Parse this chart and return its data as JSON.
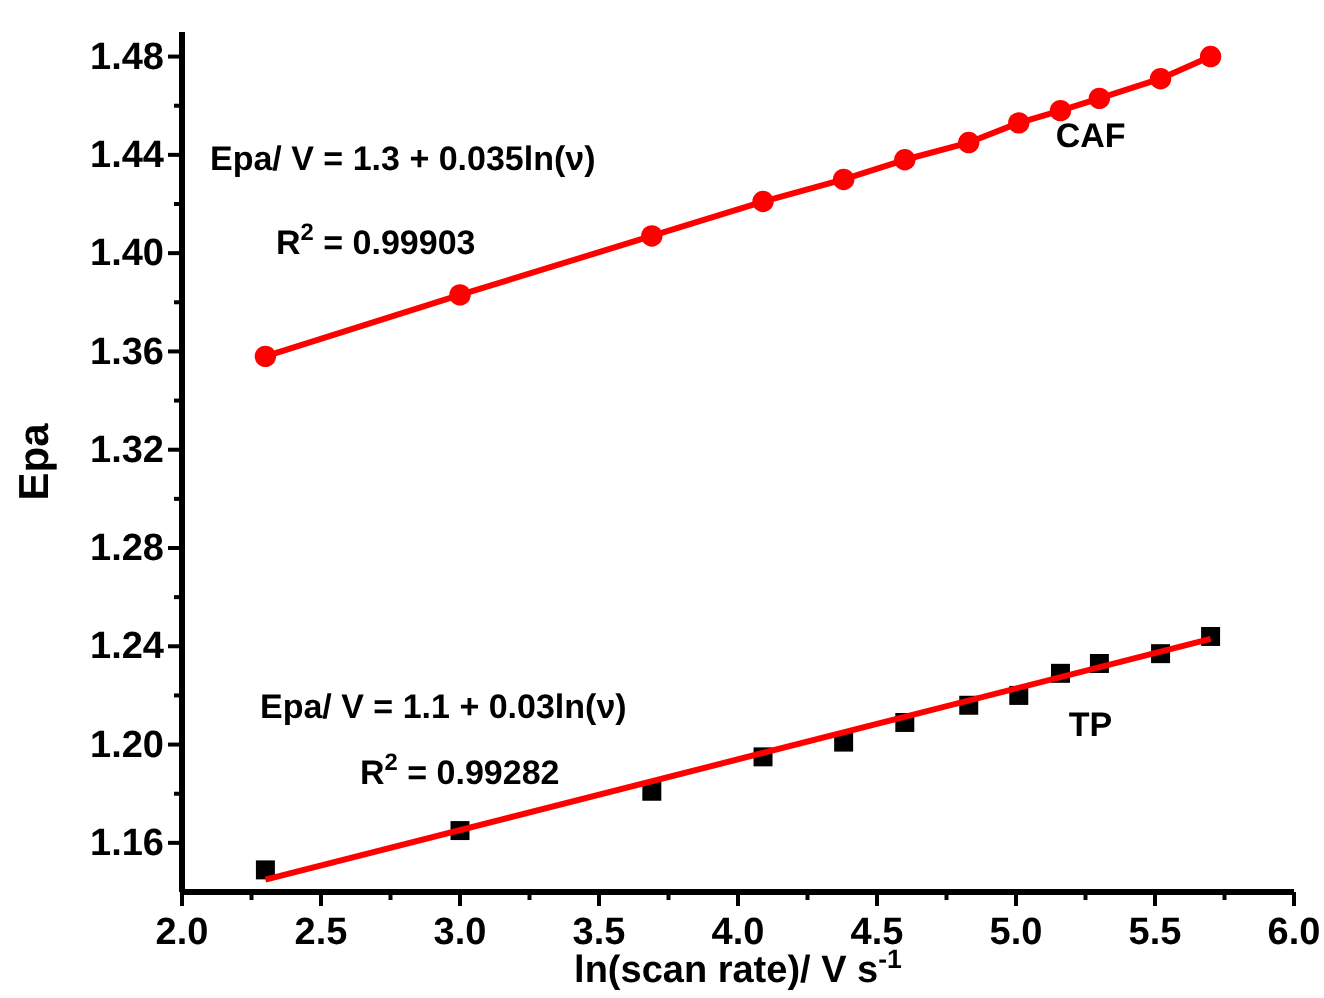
{
  "chart_data": {
    "type": "line",
    "xlabel": "ln(scan rate)/ V s$^{-1}$",
    "ylabel": "Epa",
    "xlim": [
      2.0,
      6.0
    ],
    "ylim": [
      1.14,
      1.49
    ],
    "xticks": [
      {
        "value": 2.0,
        "label": "2.0"
      },
      {
        "value": 2.25,
        "label": null
      },
      {
        "value": 2.5,
        "label": "2.5"
      },
      {
        "value": 2.75,
        "label": null
      },
      {
        "value": 3.0,
        "label": "3.0"
      },
      {
        "value": 3.25,
        "label": null
      },
      {
        "value": 3.5,
        "label": "3.5"
      },
      {
        "value": 3.75,
        "label": null
      },
      {
        "value": 4.0,
        "label": "4.0"
      },
      {
        "value": 4.25,
        "label": null
      },
      {
        "value": 4.5,
        "label": "4.5"
      },
      {
        "value": 4.75,
        "label": null
      },
      {
        "value": 5.0,
        "label": "5.0"
      },
      {
        "value": 5.25,
        "label": null
      },
      {
        "value": 5.5,
        "label": "5.5"
      },
      {
        "value": 5.75,
        "label": null
      },
      {
        "value": 6.0,
        "label": "6.0"
      }
    ],
    "yticks": [
      1.16,
      {
        "value": 1.18,
        "label": null
      },
      {
        "value": 1.2,
        "label": "1.20"
      },
      {
        "value": 1.22,
        "label": null
      },
      1.24,
      {
        "value": 1.26,
        "label": null
      },
      1.28,
      {
        "value": 1.3,
        "label": null
      },
      1.32,
      {
        "value": 1.34,
        "label": null
      },
      1.36,
      {
        "value": 1.38,
        "label": null
      },
      {
        "value": 1.4,
        "label": "1.40"
      },
      {
        "value": 1.42,
        "label": null
      },
      1.44,
      {
        "value": 1.46,
        "label": null
      },
      1.48
    ],
    "grid": false,
    "series": [
      {
        "name": "CAF",
        "marker": "circle",
        "color": "#ff0000",
        "x": [
          2.3,
          3.0,
          3.69,
          4.09,
          4.38,
          4.6,
          4.83,
          5.01,
          5.16,
          5.3,
          5.52,
          5.7
        ],
        "values": [
          1.358,
          1.383,
          1.407,
          1.421,
          1.43,
          1.438,
          1.445,
          1.453,
          1.458,
          1.463,
          1.471,
          1.48
        ]
      },
      {
        "name": "TP",
        "type": "scatter",
        "marker": "square",
        "color": "#000000",
        "x": [
          2.3,
          3.0,
          3.69,
          4.09,
          4.38,
          4.6,
          4.83,
          5.01,
          5.16,
          5.3,
          5.52,
          5.7
        ],
        "values": [
          1.149,
          1.165,
          1.181,
          1.195,
          1.201,
          1.209,
          1.216,
          1.22,
          1.229,
          1.233,
          1.237,
          1.244
        ]
      },
      {
        "type": "line",
        "marker": "none",
        "color": "#ff0000",
        "x": [
          2.3,
          5.7
        ],
        "values": [
          1.145,
          1.243
        ]
      }
    ],
    "annotations": [
      "Epa/ V = 1.3 + 0.035ln(ν)",
      "R$^{2}$ = 0.99903",
      "Epa/ V = 1.1 + 0.03ln(ν)",
      "R$^{2}$ = 0.99282"
    ]
  }
}
